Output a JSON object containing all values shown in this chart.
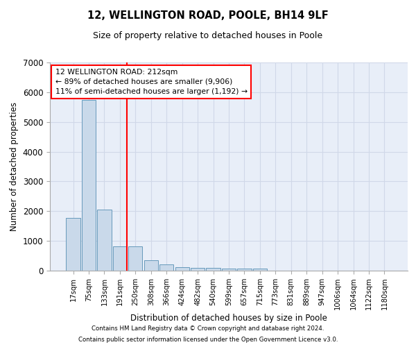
{
  "title1": "12, WELLINGTON ROAD, POOLE, BH14 9LF",
  "title2": "Size of property relative to detached houses in Poole",
  "xlabel": "Distribution of detached houses by size in Poole",
  "ylabel": "Number of detached properties",
  "categories": [
    "17sqm",
    "75sqm",
    "133sqm",
    "191sqm",
    "250sqm",
    "308sqm",
    "366sqm",
    "424sqm",
    "482sqm",
    "540sqm",
    "599sqm",
    "657sqm",
    "715sqm",
    "773sqm",
    "831sqm",
    "889sqm",
    "947sqm",
    "1006sqm",
    "1064sqm",
    "1122sqm",
    "1180sqm"
  ],
  "values": [
    1780,
    5750,
    2060,
    820,
    820,
    360,
    210,
    120,
    100,
    95,
    80,
    75,
    60,
    0,
    0,
    0,
    0,
    0,
    0,
    0,
    0
  ],
  "bar_color": "#c9d9ea",
  "bar_edge_color": "#6699bb",
  "grid_color": "#d0d8e8",
  "background_color": "#e8eef8",
  "vline_color": "red",
  "vline_pos": 3.43,
  "annotation_text": "12 WELLINGTON ROAD: 212sqm\n← 89% of detached houses are smaller (9,906)\n11% of semi-detached houses are larger (1,192) →",
  "annotation_box_edgecolor": "red",
  "ylim": [
    0,
    7000
  ],
  "yticks": [
    0,
    1000,
    2000,
    3000,
    4000,
    5000,
    6000,
    7000
  ],
  "footnote1": "Contains HM Land Registry data © Crown copyright and database right 2024.",
  "footnote2": "Contains public sector information licensed under the Open Government Licence v3.0."
}
